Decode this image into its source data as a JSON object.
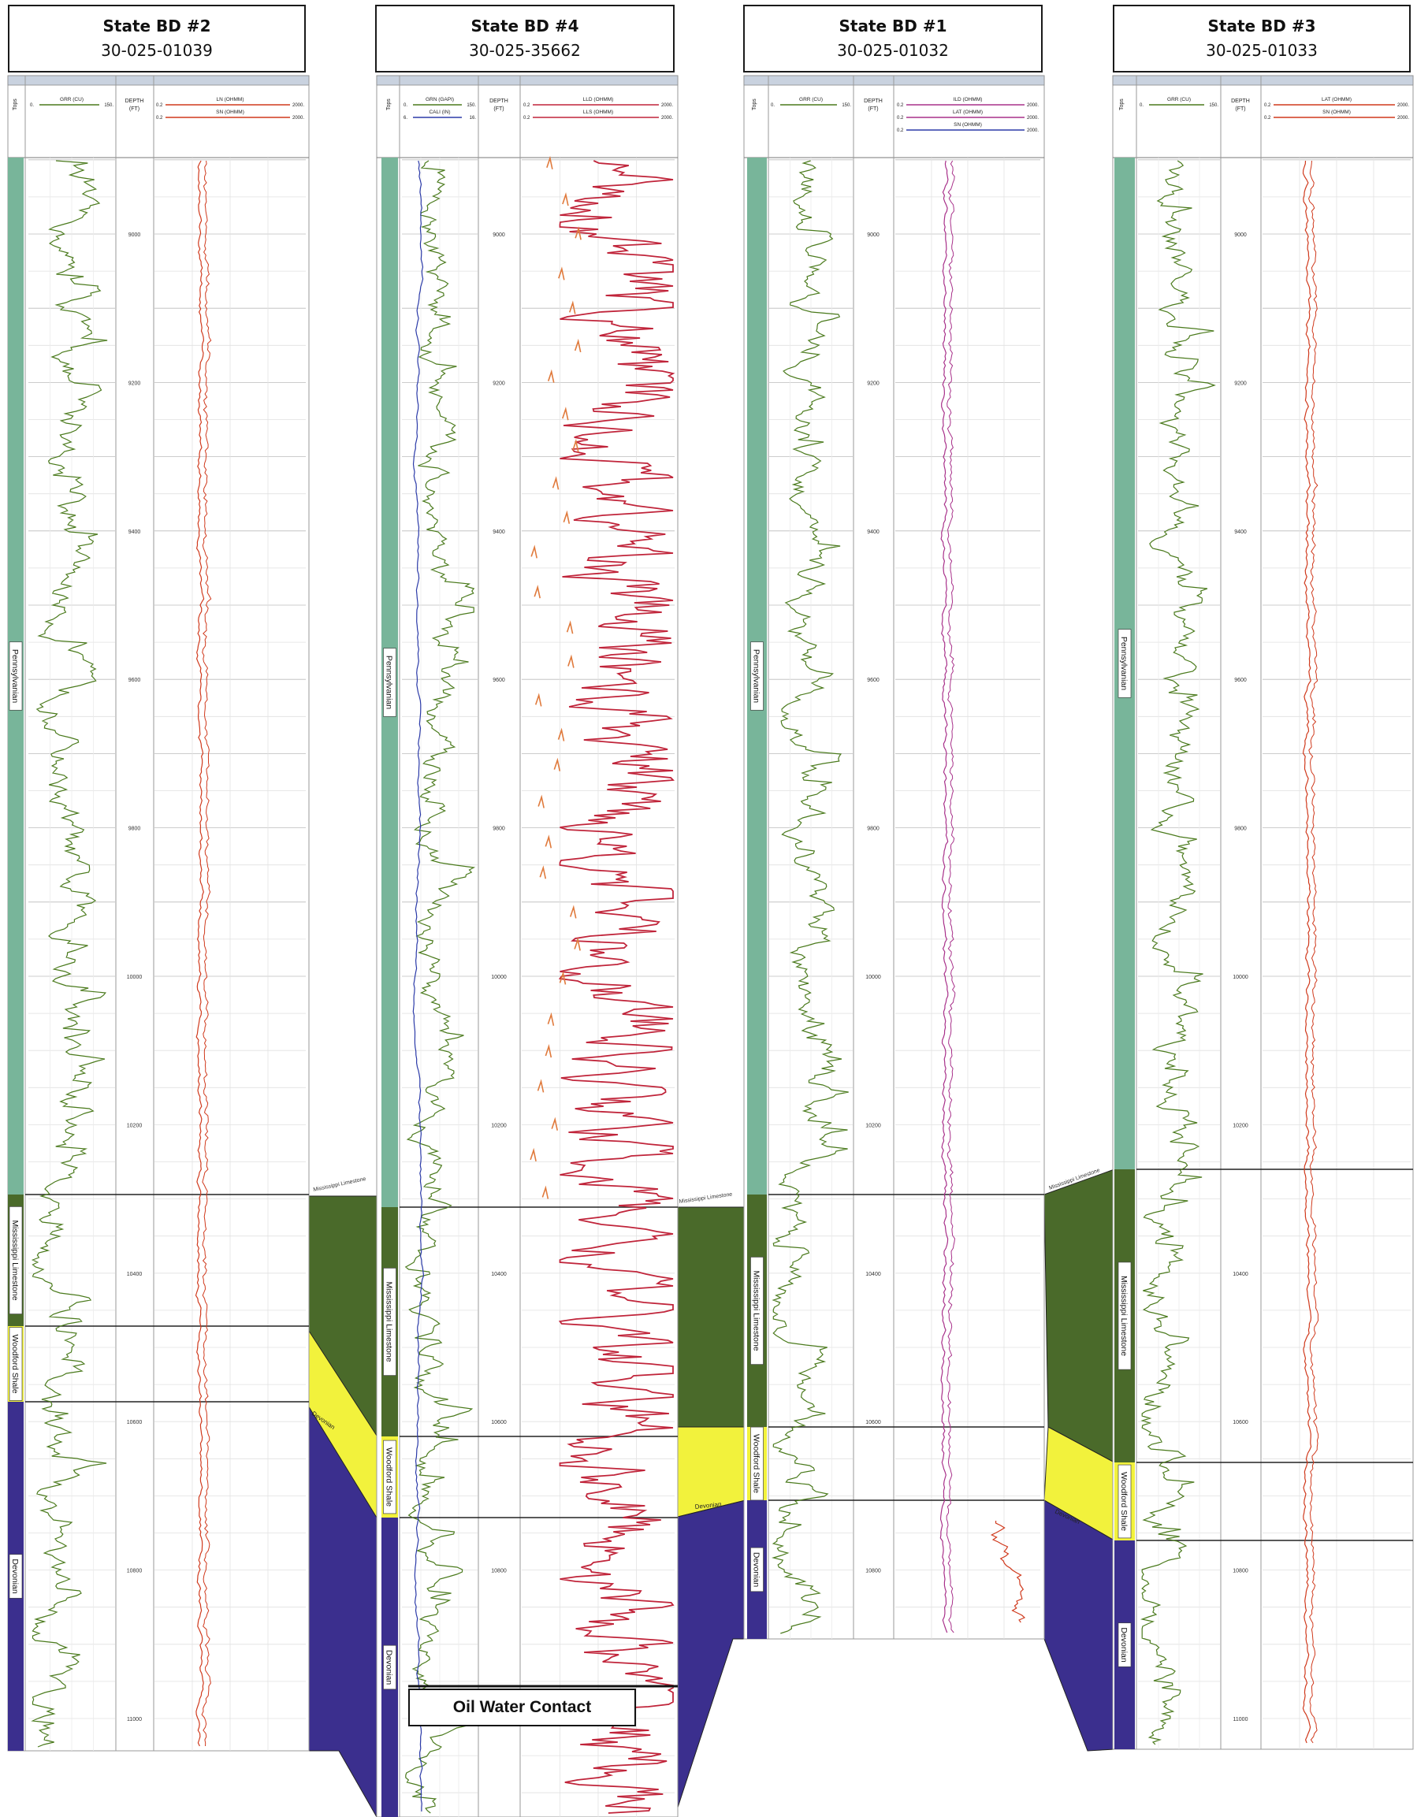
{
  "wells": [
    {
      "name": "State BD #2",
      "api": "30-025-01039",
      "tops_label": "Tops",
      "curves": [
        {
          "label": "GRR (CU)",
          "left": "0.",
          "right": "150.",
          "color": "#4a7a1c"
        },
        {
          "label": "LN (OHMM)",
          "left": "0.2",
          "right": "2000.",
          "color": "#d0391c"
        },
        {
          "label": "SN (OHMM)",
          "left": "0.2",
          "right": "2000.",
          "color": "#d0391c"
        }
      ],
      "depth_header": [
        "DEPTH",
        "(FT)"
      ],
      "depth_ticks": [
        "9000",
        "9200",
        "9400",
        "9600",
        "9800",
        "10000",
        "10200",
        "10400",
        "10600",
        "10800",
        "11000"
      ],
      "formations": [
        "Pennsylvanian",
        "Mississippi Limestone",
        "Woodford Shale",
        "Devonian"
      ]
    },
    {
      "name": "State BD #4",
      "api": "30-025-35662",
      "tops_label": "Tops",
      "curves": [
        {
          "label": "GRN (GAPI)",
          "left": "0.",
          "right": "150.",
          "color": "#4a7a1c"
        },
        {
          "label": "CALI (IN)",
          "left": "6.",
          "right": "16.",
          "color": "#2b3aa8"
        },
        {
          "label": "LLD (OHMM)",
          "left": "0.2",
          "right": "2000.",
          "color": "#c0243a"
        },
        {
          "label": "LLS (OHMM)",
          "left": "0.2",
          "right": "2000.",
          "color": "#c0243a"
        }
      ],
      "depth_header": [
        "DEPTH",
        "(FT)"
      ],
      "depth_ticks": [
        "9000",
        "9200",
        "9400",
        "9600",
        "9800",
        "10000",
        "10200",
        "10400",
        "10600",
        "10800"
      ],
      "formations": [
        "Pennsylvanian",
        "Mississippi Limestone",
        "Woodford Shale",
        "Devonian"
      ]
    },
    {
      "name": "State BD #1",
      "api": "30-025-01032",
      "tops_label": "Tops",
      "curves": [
        {
          "label": "GRR (CU)",
          "left": "0.",
          "right": "150.",
          "color": "#4a7a1c"
        },
        {
          "label": "ILD (OHMM)",
          "left": "0.2",
          "right": "2000.",
          "color": "#a8308a"
        },
        {
          "label": "LAT (OHMM)",
          "left": "0.2",
          "right": "2000.",
          "color": "#a8308a"
        },
        {
          "label": "SN (OHMM)",
          "left": "0.2",
          "right": "2000.",
          "color": "#2b3aa8"
        }
      ],
      "depth_header": [
        "DEPTH",
        "(FT)"
      ],
      "depth_ticks": [
        "9000",
        "9200",
        "9400",
        "9600",
        "9800",
        "10000",
        "10200",
        "10400",
        "10600",
        "10800"
      ],
      "formations": [
        "Pennsylvanian",
        "Mississippi Limestone",
        "Woodford Shale",
        "Devonian"
      ]
    },
    {
      "name": "State BD #3",
      "api": "30-025-01033",
      "tops_label": "Tops",
      "curves": [
        {
          "label": "GRR (CU)",
          "left": "0.",
          "right": "150.",
          "color": "#4a7a1c"
        },
        {
          "label": "LAT (OHMM)",
          "left": "0.2",
          "right": "2000.",
          "color": "#d0391c"
        },
        {
          "label": "SN (OHMM)",
          "left": "0.2",
          "right": "2000.",
          "color": "#d0391c"
        }
      ],
      "depth_header": [
        "DEPTH",
        "(FT)"
      ],
      "depth_ticks": [
        "9000",
        "9200",
        "9400",
        "9600",
        "9800",
        "10000",
        "10200",
        "10400",
        "10600",
        "10800",
        "11000"
      ],
      "formations": [
        "Pennsylvanian",
        "Mississippi Limestone",
        "Woodford Shale",
        "Devonian"
      ]
    }
  ],
  "correlation_labels": [
    "Mississippi Limestone",
    "Woodford Shale",
    "Devonian"
  ],
  "annotation": "Oil Water Contact",
  "colors": {
    "pennsylvanian": "#78b59a",
    "mississippian": "#4a6a2a",
    "woodford": "#f2f23c",
    "devonian": "#3b2f8e"
  }
}
